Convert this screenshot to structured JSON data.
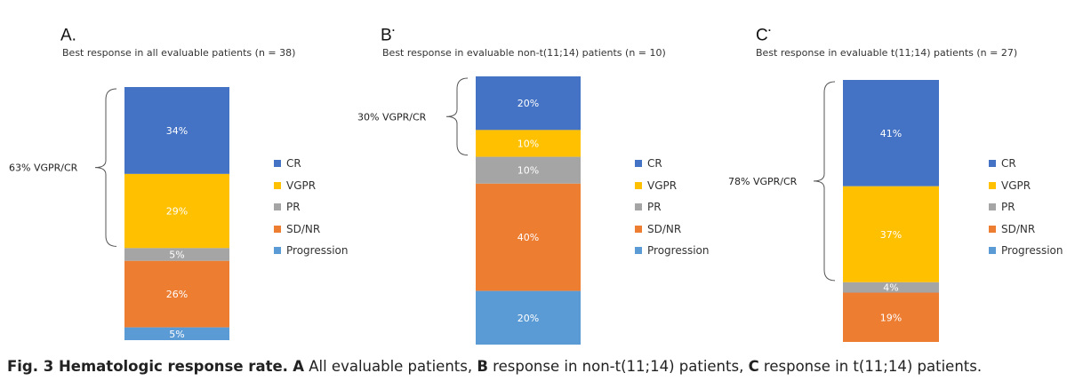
{
  "colors": {
    "CR": "#4472C4",
    "VGPR": "#FFC000",
    "PR": "#A5A5A5",
    "SD/NR": "#ED7D31",
    "Progression": "#5B9BD5"
  },
  "chart_data": [
    {
      "type": "bar",
      "stacked": true,
      "panel_label": "A.",
      "panel_label_mark": "",
      "title": "Best response in all evaluable patients (n = 38)",
      "series": [
        {
          "name": "CR",
          "value": 34,
          "label": "34%"
        },
        {
          "name": "VGPR",
          "value": 29,
          "label": "29%"
        },
        {
          "name": "PR",
          "value": 5,
          "label": "5%"
        },
        {
          "name": "SD/NR",
          "value": 26,
          "label": "26%"
        },
        {
          "name": "Progression",
          "value": 5,
          "label": "5%"
        }
      ],
      "bracket_label": "63% VGPR/CR",
      "legend": [
        "CR",
        "VGPR",
        "PR",
        "SD/NR",
        "Progression"
      ]
    },
    {
      "type": "bar",
      "stacked": true,
      "panel_label": "B",
      "panel_label_mark": "·",
      "title": "Best response in evaluable non-t(11;14) patients (n = 10)",
      "series": [
        {
          "name": "CR",
          "value": 20,
          "label": "20%"
        },
        {
          "name": "VGPR",
          "value": 10,
          "label": "10%"
        },
        {
          "name": "PR",
          "value": 10,
          "label": "10%"
        },
        {
          "name": "SD/NR",
          "value": 40,
          "label": "40%"
        },
        {
          "name": "Progression",
          "value": 20,
          "label": "20%"
        }
      ],
      "bracket_label": "30% VGPR/CR",
      "legend": [
        "CR",
        "VGPR",
        "PR",
        "SD/NR",
        "Progression"
      ]
    },
    {
      "type": "bar",
      "stacked": true,
      "panel_label": "C",
      "panel_label_mark": "·",
      "title": "Best response in evaluable t(11;14) patients (n = 27)",
      "series": [
        {
          "name": "CR",
          "value": 41,
          "label": "41%"
        },
        {
          "name": "VGPR",
          "value": 37,
          "label": "37%"
        },
        {
          "name": "PR",
          "value": 4,
          "label": "4%"
        },
        {
          "name": "SD/NR",
          "value": 19,
          "label": "19%"
        }
      ],
      "bracket_label": "78% VGPR/CR",
      "legend": [
        "CR",
        "VGPR",
        "PR",
        "SD/NR",
        "Progression"
      ]
    }
  ],
  "caption": {
    "prefix": "Fig. 3 Hematologic response rate.",
    "a_letter": "A",
    "a_text": " All evaluable patients, ",
    "b_letter": "B",
    "b_text": " response in non-t(11;14) patients, ",
    "c_letter": "C",
    "c_text": " response in t(11;14) patients."
  }
}
